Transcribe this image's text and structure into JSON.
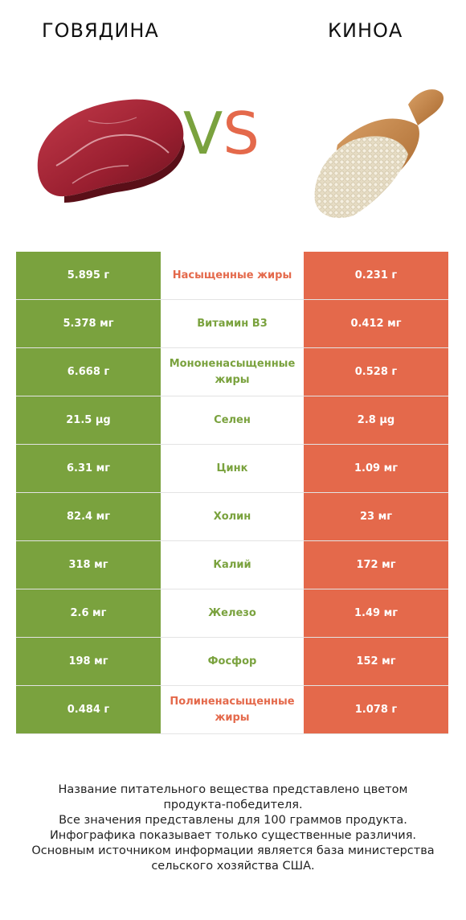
{
  "header": {
    "left_title": "ГОВЯДИНА",
    "right_title": "КИНОА",
    "vs_v": "V",
    "vs_s": "S"
  },
  "colors": {
    "beef": "#7aa23e",
    "quinoa": "#e4694b"
  },
  "images": {
    "left": "raw-beef-steak-image",
    "right": "quinoa-in-wooden-scoop-image"
  },
  "rows": [
    {
      "left": "5.895 г",
      "label": "Насыщенные жиры",
      "right": "0.231 г",
      "winner": "right"
    },
    {
      "left": "5.378 мг",
      "label": "Витамин B3",
      "right": "0.412 мг",
      "winner": "left"
    },
    {
      "left": "6.668 г",
      "label": "Мононенасыщенные жиры",
      "right": "0.528 г",
      "winner": "left"
    },
    {
      "left": "21.5 µg",
      "label": "Селен",
      "right": "2.8 µg",
      "winner": "left"
    },
    {
      "left": "6.31 мг",
      "label": "Цинк",
      "right": "1.09 мг",
      "winner": "left"
    },
    {
      "left": "82.4 мг",
      "label": "Холин",
      "right": "23 мг",
      "winner": "left"
    },
    {
      "left": "318 мг",
      "label": "Калий",
      "right": "172 мг",
      "winner": "left"
    },
    {
      "left": "2.6 мг",
      "label": "Железо",
      "right": "1.49 мг",
      "winner": "left"
    },
    {
      "left": "198 мг",
      "label": "Фосфор",
      "right": "152 мг",
      "winner": "left"
    },
    {
      "left": "0.484 г",
      "label": "Полиненасыщенные жиры",
      "right": "1.078 г",
      "winner": "right"
    }
  ],
  "footnote": [
    "Название питательного вещества представлено цветом",
    "продукта-победителя.",
    "Все значения представлены для 100 граммов продукта.",
    "Инфографика показывает только существенные различия.",
    "Основным источником информации является база министерства",
    "сельского хозяйства США."
  ]
}
